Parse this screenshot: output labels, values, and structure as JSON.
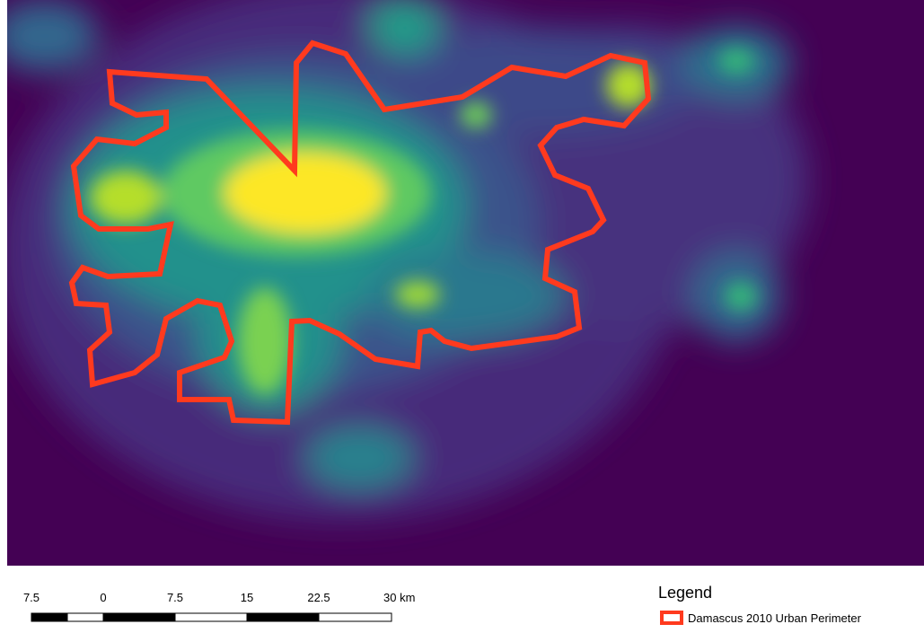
{
  "scale_bar": {
    "labels": [
      "7.5",
      "0",
      "7.5",
      "15",
      "22.5",
      "30 km"
    ]
  },
  "legend": {
    "title": "Legend",
    "items": [
      {
        "label": "Damascus 2010 Urban Perimeter"
      }
    ]
  }
}
